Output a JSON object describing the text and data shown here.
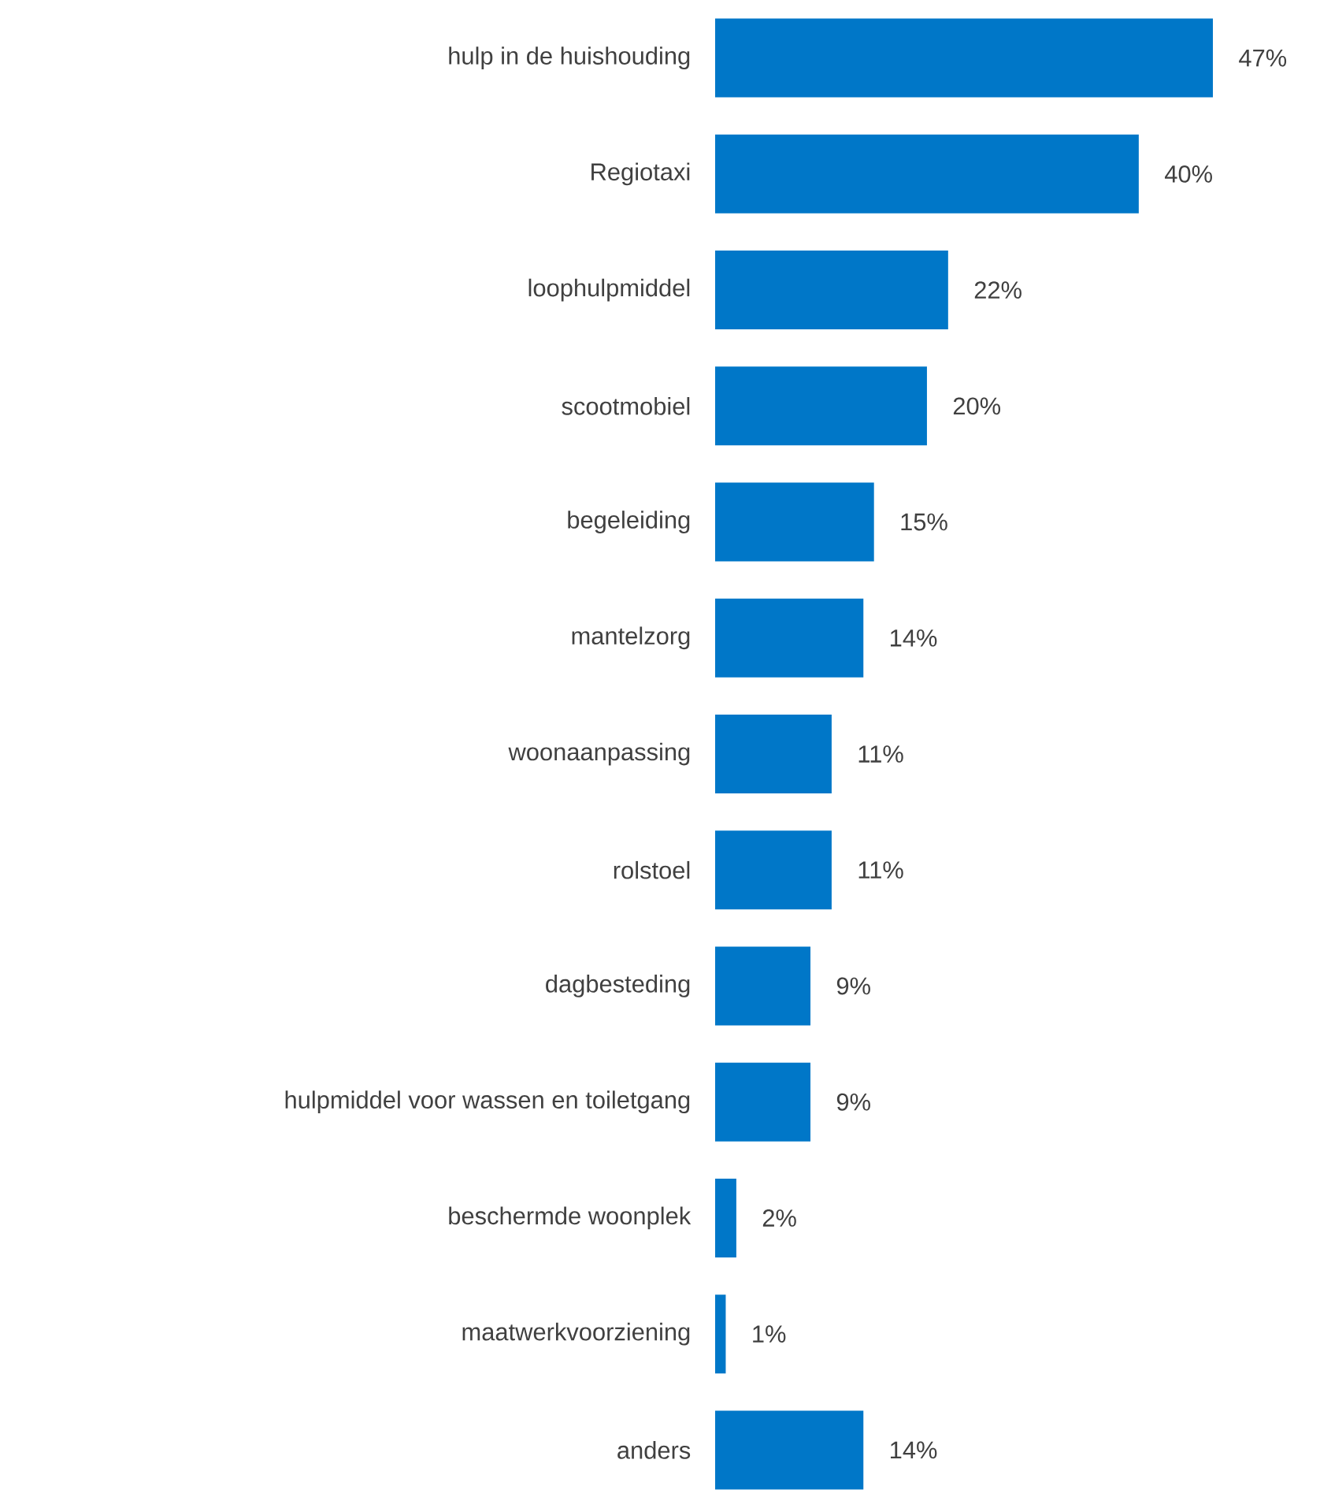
{
  "chart_data": {
    "type": "bar",
    "orientation": "horizontal",
    "categories": [
      "hulp in de huishouding",
      "Regiotaxi",
      "loophulpmiddel",
      "scootmobiel",
      "begeleiding",
      "mantelzorg",
      "woonaanpassing",
      "rolstoel",
      "dagbesteding",
      "hulpmiddel voor wassen en toiletgang",
      "beschermde woonplek",
      "maatwerkvoorziening",
      "anders"
    ],
    "values": [
      47,
      40,
      22,
      20,
      15,
      14,
      11,
      11,
      9,
      9,
      2,
      1,
      14
    ],
    "value_labels": [
      "47%",
      "40%",
      "22%",
      "20%",
      "15%",
      "14%",
      "11%",
      "11%",
      "9%",
      "9%",
      "2%",
      "1%",
      "14%"
    ],
    "color": "#0077c8"
  }
}
